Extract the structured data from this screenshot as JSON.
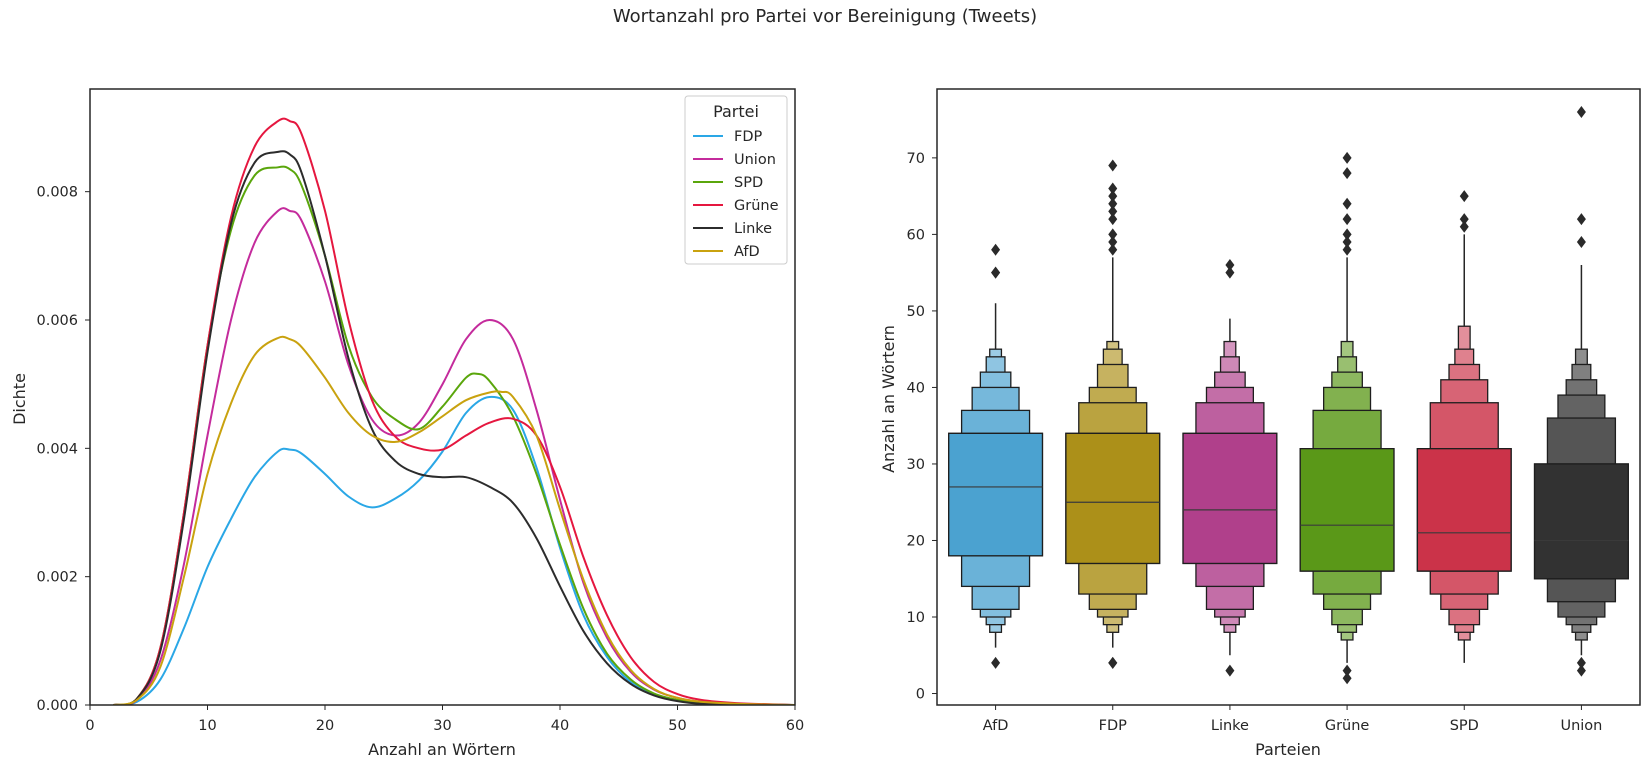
{
  "title": "Wortanzahl pro Partei vor Bereinigung (Tweets)",
  "chart_data": [
    {
      "type": "line",
      "subtype": "kde",
      "xlabel": "Anzahl an Wörtern",
      "ylabel": "Dichte",
      "xlim": [
        0,
        60
      ],
      "ylim": [
        0,
        0.0096
      ],
      "xticks": [
        0,
        10,
        20,
        30,
        40,
        50,
        60
      ],
      "yticks": [
        0.0,
        0.002,
        0.004,
        0.006,
        0.008
      ],
      "ytick_labels": [
        "0.000",
        "0.002",
        "0.004",
        "0.006",
        "0.008"
      ],
      "grid": false,
      "legend": {
        "title": "Partei",
        "placement": "top-right"
      },
      "series": [
        {
          "name": "FDP",
          "color": "#2aa7e6",
          "x": [
            2,
            4,
            6,
            8,
            10,
            12,
            14,
            16,
            17,
            18,
            20,
            22,
            24,
            26,
            28,
            30,
            32,
            34,
            36,
            38,
            40,
            42,
            44,
            46,
            48,
            50,
            52,
            55,
            60
          ],
          "y": [
            0.0,
            5e-05,
            0.0004,
            0.0012,
            0.00215,
            0.0029,
            0.00355,
            0.00395,
            0.00398,
            0.00392,
            0.0036,
            0.00325,
            0.00308,
            0.00322,
            0.0035,
            0.00395,
            0.00455,
            0.0048,
            0.0046,
            0.0037,
            0.00245,
            0.0014,
            0.00075,
            0.00036,
            0.00016,
            7e-05,
            3e-05,
            1e-05,
            0.0
          ]
        },
        {
          "name": "Union",
          "color": "#c42b9c",
          "x": [
            2,
            4,
            6,
            8,
            10,
            12,
            14,
            16,
            17,
            18,
            20,
            22,
            24,
            26,
            28,
            30,
            32,
            34,
            36,
            38,
            40,
            42,
            44,
            46,
            48,
            50,
            52,
            55,
            60
          ],
          "y": [
            0.0,
            8e-05,
            0.0007,
            0.0022,
            0.0042,
            0.006,
            0.0072,
            0.0077,
            0.0077,
            0.00755,
            0.0066,
            0.0053,
            0.00445,
            0.0042,
            0.0044,
            0.005,
            0.0057,
            0.006,
            0.0057,
            0.0046,
            0.0032,
            0.0019,
            0.00105,
            0.00052,
            0.00024,
            0.00011,
            5e-05,
            2e-05,
            0.0
          ]
        },
        {
          "name": "SPD",
          "color": "#5aa60c",
          "x": [
            2,
            4,
            6,
            8,
            10,
            12,
            14,
            16,
            17,
            18,
            20,
            22,
            24,
            26,
            28,
            30,
            32,
            33,
            34,
            36,
            38,
            40,
            42,
            44,
            46,
            48,
            50,
            52,
            55,
            60
          ],
          "y": [
            0.0,
            0.0001,
            0.0009,
            0.003,
            0.0056,
            0.0074,
            0.00825,
            0.00838,
            0.00835,
            0.0081,
            0.007,
            0.0056,
            0.0048,
            0.00445,
            0.0043,
            0.00465,
            0.0051,
            0.00516,
            0.00505,
            0.0045,
            0.0036,
            0.0025,
            0.0015,
            0.0008,
            0.0004,
            0.00018,
            8e-05,
            3e-05,
            1e-05,
            0.0
          ]
        },
        {
          "name": "Grüne",
          "color": "#e5173f",
          "x": [
            2,
            4,
            6,
            8,
            10,
            12,
            14,
            16,
            17,
            18,
            20,
            22,
            24,
            26,
            28,
            30,
            32,
            34,
            36,
            38,
            40,
            42,
            44,
            46,
            48,
            50,
            52,
            55,
            60
          ],
          "y": [
            0.0,
            0.0001,
            0.0009,
            0.003,
            0.0056,
            0.0076,
            0.0087,
            0.0091,
            0.0091,
            0.0089,
            0.0077,
            0.006,
            0.00475,
            0.00418,
            0.004,
            0.00398,
            0.0042,
            0.0044,
            0.00446,
            0.0042,
            0.0034,
            0.0023,
            0.0014,
            0.00075,
            0.00036,
            0.00017,
            8e-05,
            3e-05,
            0.0
          ]
        },
        {
          "name": "Linke",
          "color": "#2c2c2c",
          "x": [
            2,
            4,
            6,
            8,
            10,
            12,
            14,
            16,
            17,
            18,
            20,
            22,
            24,
            26,
            28,
            30,
            32,
            34,
            36,
            38,
            40,
            42,
            44,
            46,
            48,
            50,
            52,
            55,
            60
          ],
          "y": [
            0.0,
            0.0001,
            0.00085,
            0.0029,
            0.0055,
            0.0075,
            0.00845,
            0.00862,
            0.00858,
            0.0083,
            0.007,
            0.0054,
            0.0043,
            0.0038,
            0.0036,
            0.00355,
            0.00355,
            0.0034,
            0.00315,
            0.0026,
            0.00185,
            0.00115,
            0.00065,
            0.00033,
            0.00015,
            6e-05,
            2e-05,
            1e-05,
            0.0
          ]
        },
        {
          "name": "AfD",
          "color": "#c9a20f",
          "x": [
            2,
            4,
            6,
            8,
            10,
            12,
            14,
            16,
            17,
            18,
            20,
            22,
            24,
            26,
            28,
            30,
            32,
            34,
            35,
            36,
            38,
            40,
            42,
            44,
            46,
            48,
            50,
            52,
            55,
            60
          ],
          "y": [
            0.0,
            8e-05,
            0.0006,
            0.002,
            0.0036,
            0.0047,
            0.00545,
            0.00572,
            0.0057,
            0.00558,
            0.0051,
            0.00455,
            0.0042,
            0.0041,
            0.00425,
            0.0045,
            0.00475,
            0.00487,
            0.00488,
            0.0048,
            0.0042,
            0.00305,
            0.00195,
            0.0011,
            0.00055,
            0.00025,
            0.00011,
            5e-05,
            2e-05,
            0.0
          ]
        }
      ]
    },
    {
      "type": "boxen",
      "xlabel": "Parteien",
      "ylabel": "Anzahl an Wörtern",
      "ylim": [
        -1.5,
        79
      ],
      "yticks": [
        0,
        10,
        20,
        30,
        40,
        50,
        60,
        70
      ],
      "grid": false,
      "categories": [
        "AfD",
        "FDP",
        "Linke",
        "Grüne",
        "SPD",
        "Union"
      ],
      "series": [
        {
          "name": "AfD",
          "color": "#4ba2d0",
          "median": 27,
          "boxes": [
            [
              18,
              34
            ],
            [
              14,
              37
            ],
            [
              11,
              40
            ],
            [
              10,
              42
            ],
            [
              9,
              44
            ],
            [
              8,
              45
            ]
          ],
          "whisker": [
            6,
            51
          ],
          "outliers": [
            4,
            55,
            55,
            58
          ]
        },
        {
          "name": "FDP",
          "color": "#ac9019",
          "median": 25,
          "boxes": [
            [
              17,
              34
            ],
            [
              13,
              38
            ],
            [
              11,
              40
            ],
            [
              10,
              43
            ],
            [
              9,
              45
            ],
            [
              8,
              46
            ]
          ],
          "whisker": [
            6,
            57
          ],
          "outliers": [
            4,
            4,
            58,
            59,
            60,
            62,
            63,
            64,
            65,
            66,
            69
          ]
        },
        {
          "name": "Linke",
          "color": "#b0408b",
          "median": 24,
          "boxes": [
            [
              17,
              34
            ],
            [
              14,
              38
            ],
            [
              11,
              40
            ],
            [
              10,
              42
            ],
            [
              9,
              44
            ],
            [
              8,
              46
            ]
          ],
          "whisker": [
            5,
            49
          ],
          "outliers": [
            3,
            55,
            56
          ]
        },
        {
          "name": "Grüne",
          "color": "#5a9818",
          "median": 22,
          "boxes": [
            [
              16,
              32
            ],
            [
              13,
              37
            ],
            [
              11,
              40
            ],
            [
              9,
              42
            ],
            [
              8,
              44
            ],
            [
              7,
              46
            ]
          ],
          "whisker": [
            4,
            57
          ],
          "outliers": [
            2,
            3,
            58,
            59,
            60,
            62,
            64,
            68,
            70
          ]
        },
        {
          "name": "SPD",
          "color": "#cb3349",
          "median": 21,
          "boxes": [
            [
              16,
              32
            ],
            [
              13,
              38
            ],
            [
              11,
              41
            ],
            [
              9,
              43
            ],
            [
              8,
              45
            ],
            [
              7,
              48
            ]
          ],
          "whisker": [
            4,
            60
          ],
          "outliers": [
            61,
            62,
            65
          ]
        },
        {
          "name": "Union",
          "color": "#323232",
          "median": 20,
          "boxes": [
            [
              15,
              30
            ],
            [
              12,
              36
            ],
            [
              10,
              39
            ],
            [
              9,
              41
            ],
            [
              8,
              43
            ],
            [
              7,
              45
            ]
          ],
          "whisker": [
            5,
            56
          ],
          "outliers": [
            3,
            4,
            59,
            62,
            76
          ]
        }
      ]
    }
  ]
}
